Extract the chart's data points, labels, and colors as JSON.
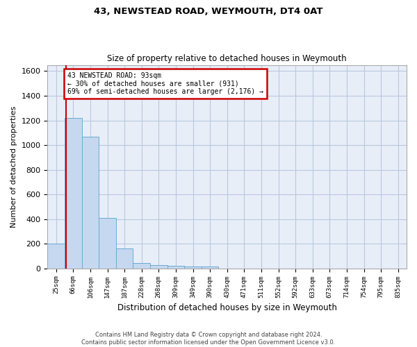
{
  "title1": "43, NEWSTEAD ROAD, WEYMOUTH, DT4 0AT",
  "title2": "Size of property relative to detached houses in Weymouth",
  "xlabel": "Distribution of detached houses by size in Weymouth",
  "ylabel": "Number of detached properties",
  "footnote1": "Contains HM Land Registry data © Crown copyright and database right 2024.",
  "footnote2": "Contains public sector information licensed under the Open Government Licence v3.0.",
  "bin_labels": [
    "25sqm",
    "66sqm",
    "106sqm",
    "147sqm",
    "187sqm",
    "228sqm",
    "268sqm",
    "309sqm",
    "349sqm",
    "390sqm",
    "430sqm",
    "471sqm",
    "511sqm",
    "552sqm",
    "592sqm",
    "633sqm",
    "673sqm",
    "714sqm",
    "754sqm",
    "795sqm",
    "835sqm"
  ],
  "bar_values": [
    203,
    1222,
    1070,
    410,
    160,
    45,
    25,
    20,
    15,
    15,
    0,
    0,
    0,
    0,
    0,
    0,
    0,
    0,
    0,
    0,
    0
  ],
  "bar_color": "#c5d8ef",
  "bar_edge_color": "#6aaad4",
  "grid_color": "#b8c8de",
  "background_color": "#e8eef8",
  "vline_x": 0.57,
  "annotation_line1": "43 NEWSTEAD ROAD: 93sqm",
  "annotation_line2": "← 30% of detached houses are smaller (931)",
  "annotation_line3": "69% of semi-detached houses are larger (2,176) →",
  "annotation_box_color": "#ffffff",
  "annotation_border_color": "#cc0000",
  "vline_color": "#cc0000",
  "ylim": [
    0,
    1650
  ],
  "yticks": [
    0,
    200,
    400,
    600,
    800,
    1000,
    1200,
    1400,
    1600
  ],
  "title1_fontsize": 9.5,
  "title2_fontsize": 8.5
}
